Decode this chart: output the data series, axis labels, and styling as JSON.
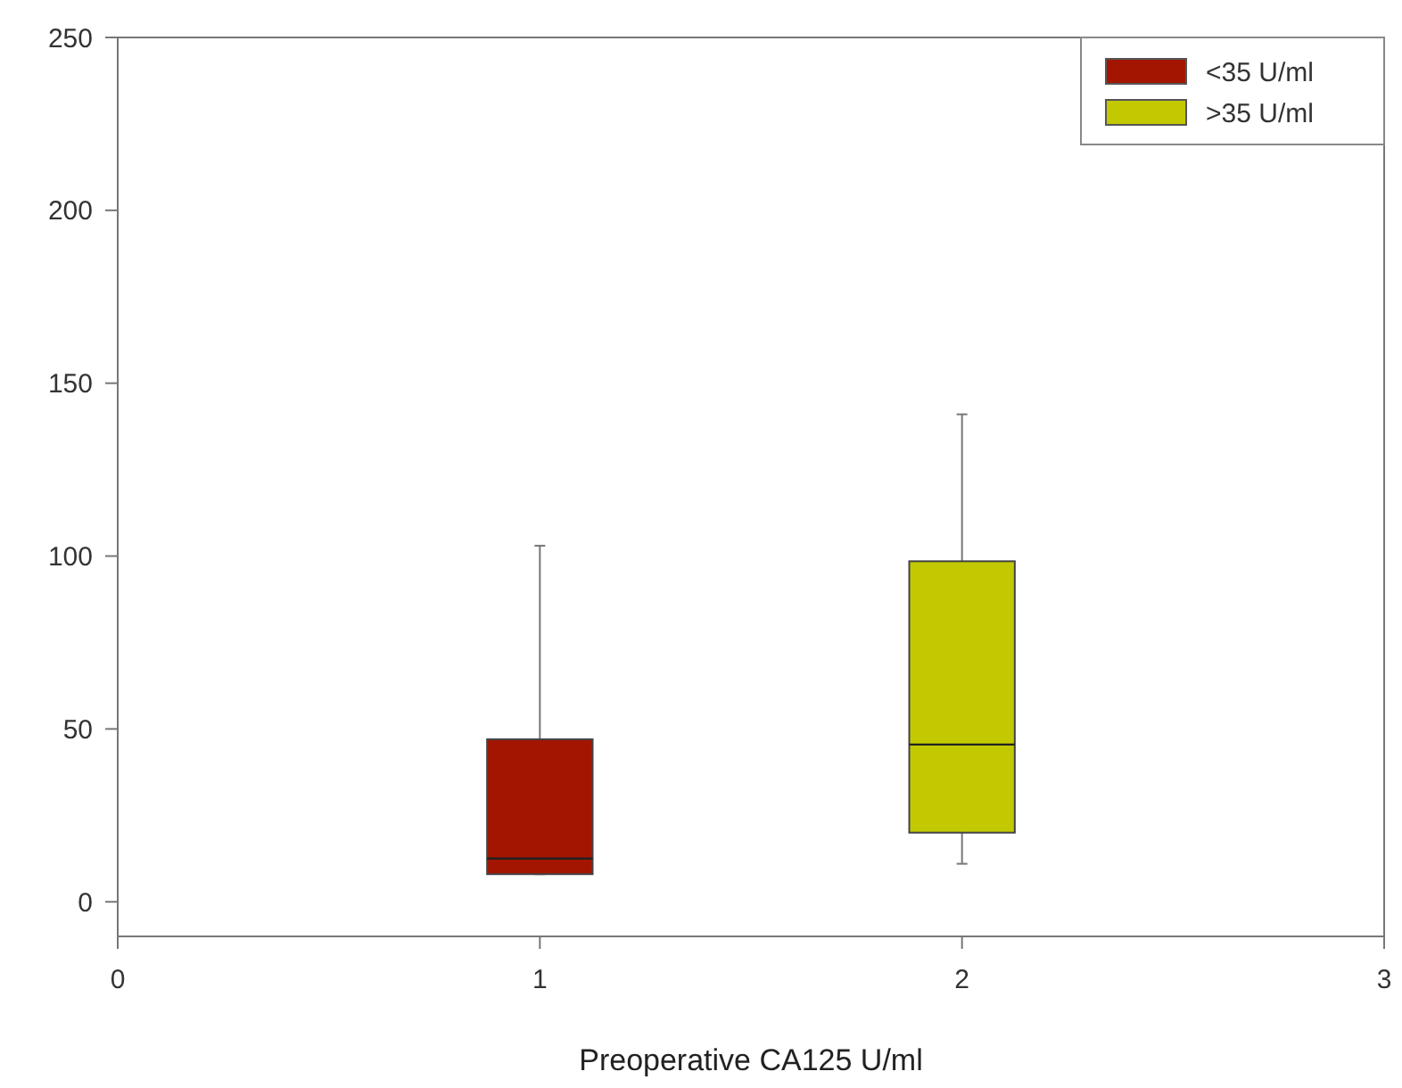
{
  "chart_data": {
    "type": "box",
    "xlabel": "Preoperative CA125 U/ml",
    "xlim": [
      0,
      3
    ],
    "xticks": [
      0,
      1,
      2,
      3
    ],
    "ylim": [
      -10,
      250
    ],
    "yticks": [
      0,
      50,
      100,
      150,
      200,
      250
    ],
    "legend": "top right",
    "grid": false,
    "series": [
      {
        "name": "<35 U/ml",
        "color": "#a31500",
        "x": [
          1
        ],
        "boxes": [
          {
            "low": 8,
            "q1": 8,
            "median": 12.5,
            "q3": 47,
            "high": 103
          }
        ]
      },
      {
        "name": ">35 U/ml",
        "color": "#c2c900",
        "x": [
          2
        ],
        "boxes": [
          {
            "low": 11,
            "q1": 20,
            "median": 45.5,
            "q3": 98.5,
            "high": 141
          }
        ]
      }
    ]
  }
}
